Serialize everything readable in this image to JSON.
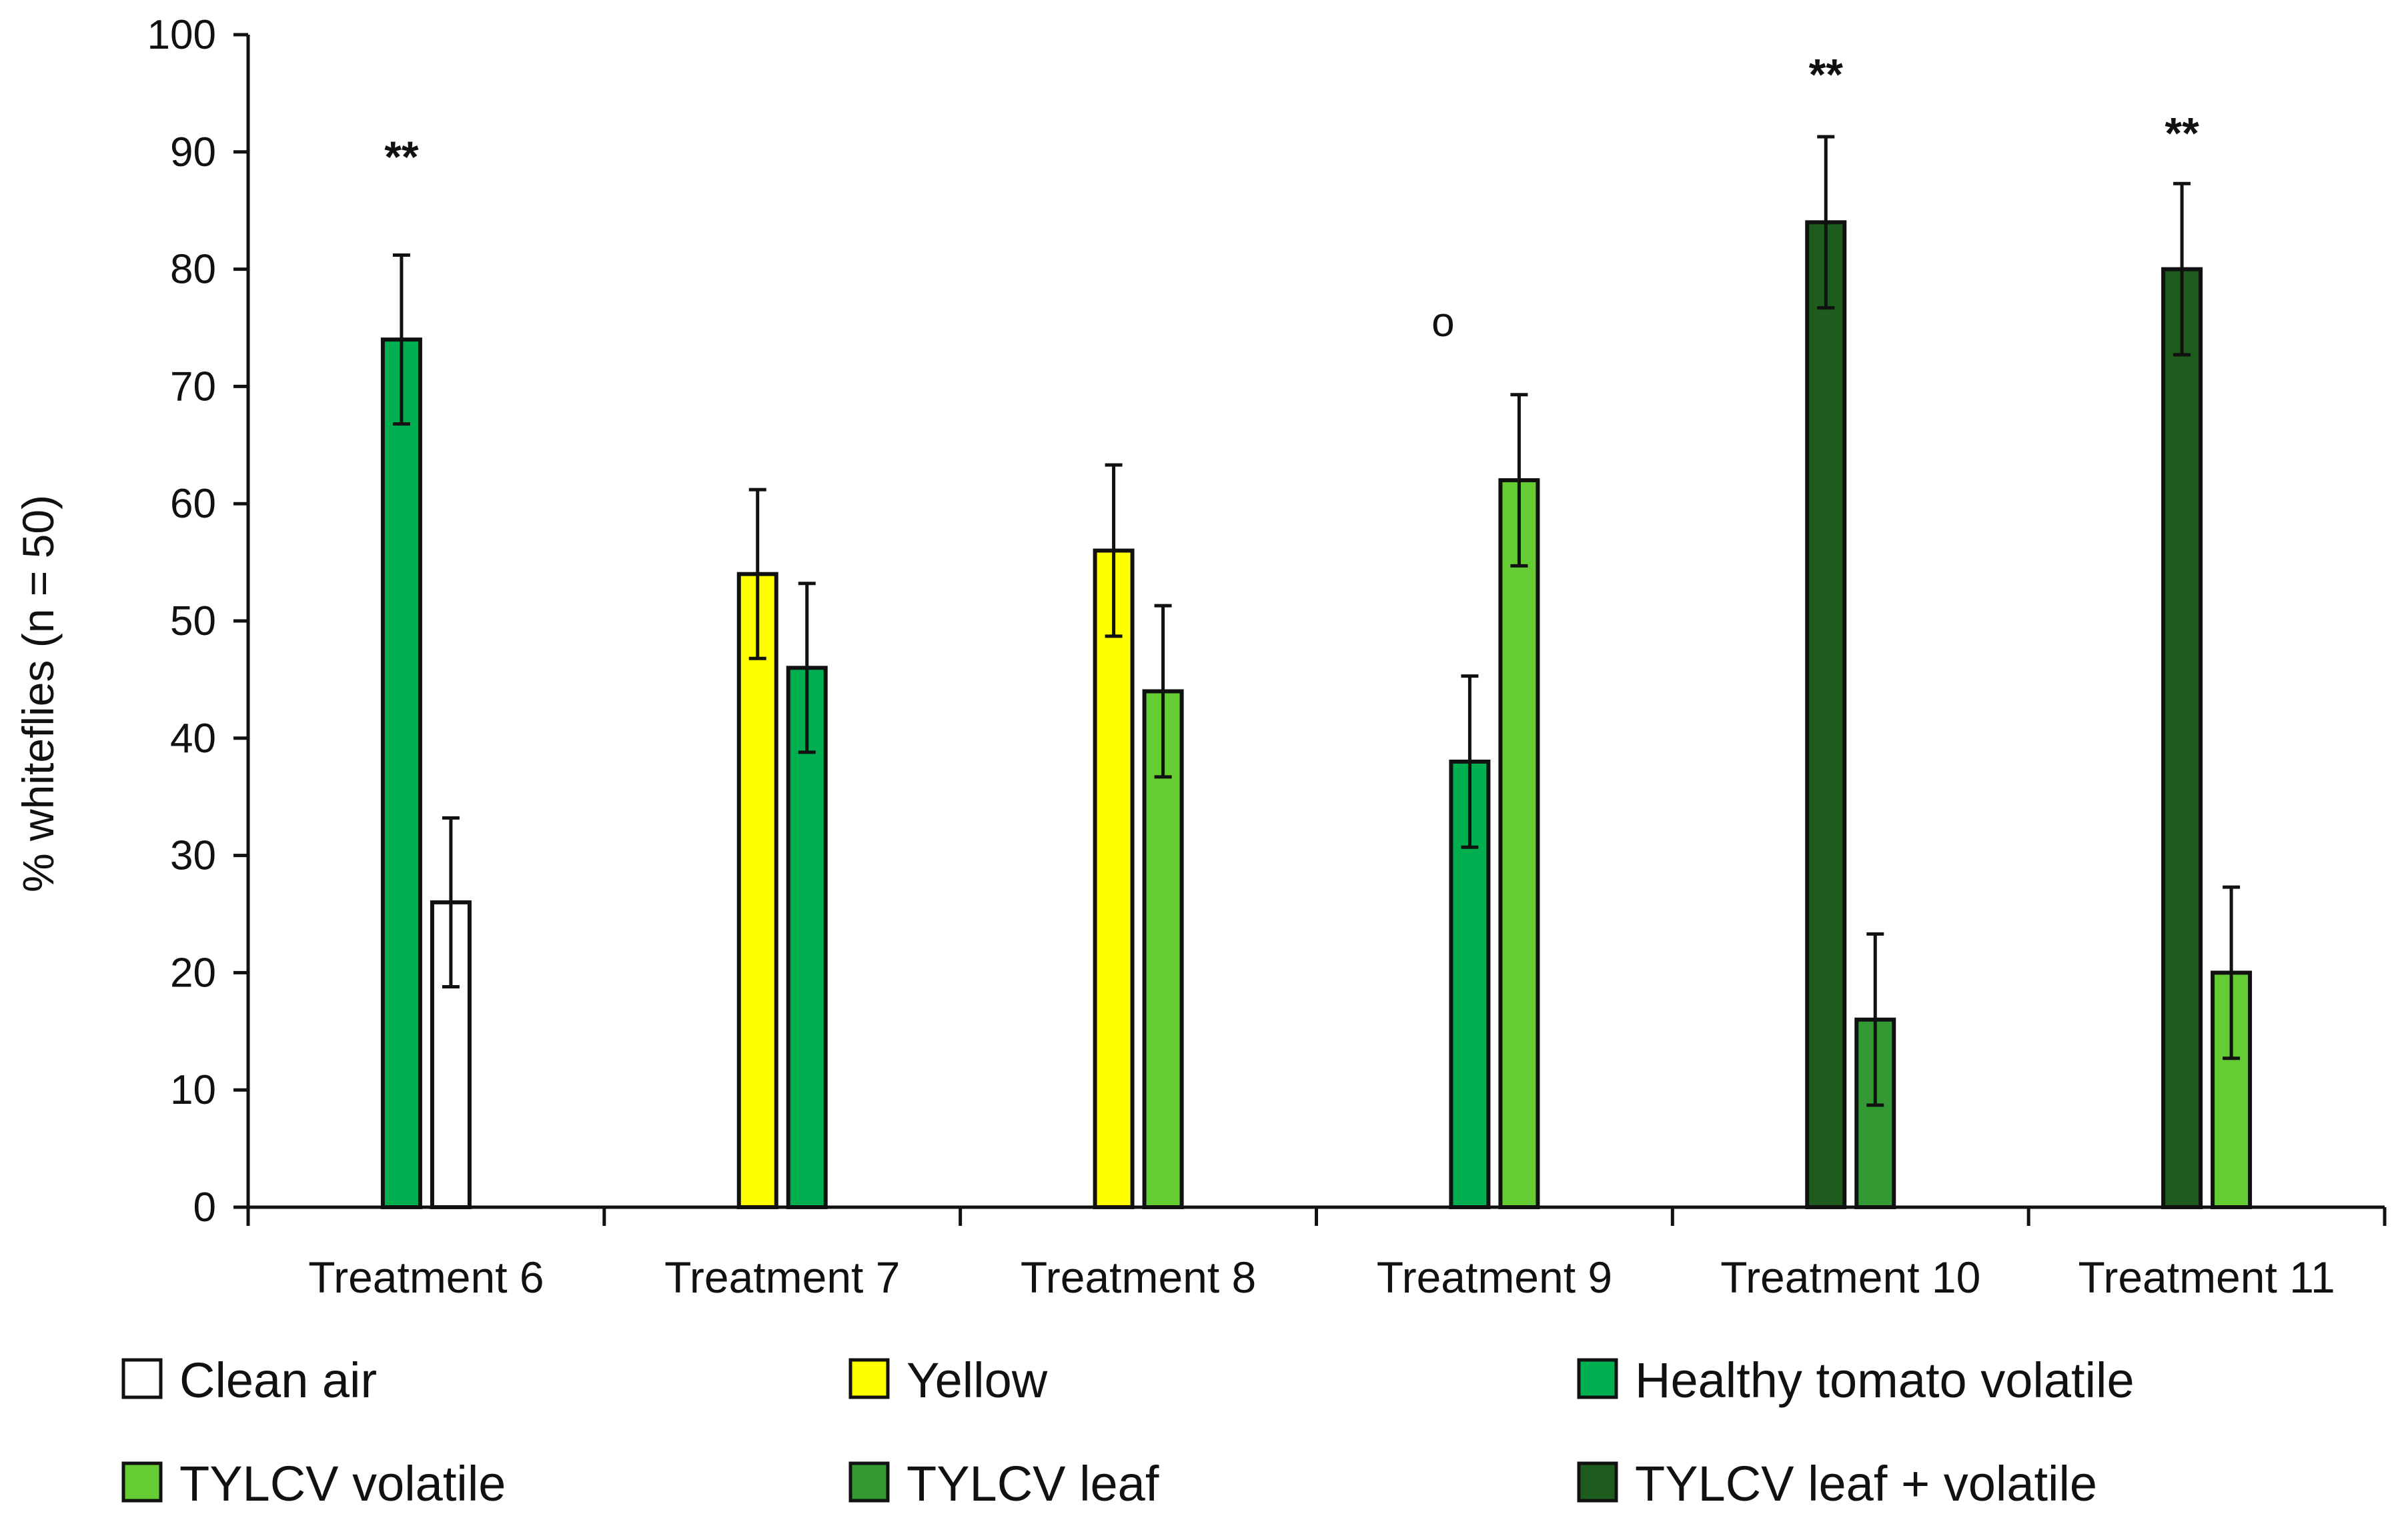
{
  "chart_data": {
    "type": "bar",
    "title": "",
    "xlabel": "",
    "ylabel": "% whiteflies (n = 50)",
    "ylim": [
      0,
      100
    ],
    "yticks": [
      0,
      10,
      20,
      30,
      40,
      50,
      60,
      70,
      80,
      90,
      100
    ],
    "grid": false,
    "categories": [
      "Treatment 6",
      "Treatment 7",
      "Treatment 8",
      "Treatment 9",
      "Treatment 10",
      "Treatment 11"
    ],
    "bars": [
      [
        {
          "series": "Healthy tomato volatile",
          "value": 74,
          "error": 7.2
        },
        {
          "series": "Clean air",
          "value": 26,
          "error": 7.2
        }
      ],
      [
        {
          "series": "Yellow",
          "value": 54,
          "error": 7.2
        },
        {
          "series": "Healthy tomato volatile",
          "value": 46,
          "error": 7.2
        }
      ],
      [
        {
          "series": "Yellow",
          "value": 56,
          "error": 7.3
        },
        {
          "series": "TYLCV volatile",
          "value": 44,
          "error": 7.3
        }
      ],
      [
        {
          "series": "Healthy tomato volatile",
          "value": 38,
          "error": 7.3
        },
        {
          "series": "TYLCV volatile",
          "value": 62,
          "error": 7.3
        }
      ],
      [
        {
          "series": "TYLCV leaf + volatile",
          "value": 84,
          "error": 7.3
        },
        {
          "series": "TYLCV leaf",
          "value": 16,
          "error": 7.3
        }
      ],
      [
        {
          "series": "TYLCV leaf + volatile",
          "value": 80,
          "error": 7.3
        },
        {
          "series": "TYLCV volatile",
          "value": 20,
          "error": 7.3
        }
      ]
    ],
    "annotations": [
      {
        "category": "Treatment 6",
        "text": "**",
        "value": 90
      },
      {
        "category": "Treatment 9",
        "text": "o",
        "value": 76
      },
      {
        "category": "Treatment 10",
        "text": "**",
        "value": 97
      },
      {
        "category": "Treatment 11",
        "text": "**",
        "value": 92
      }
    ],
    "legend": {
      "placement": "bottom",
      "items": [
        {
          "name": "Clean air",
          "color": "#ffffff"
        },
        {
          "name": "Yellow",
          "color": "#ffff00"
        },
        {
          "name": "Healthy tomato volatile",
          "color": "#00b050"
        },
        {
          "name": "TYLCV volatile",
          "color": "#66cc33"
        },
        {
          "name": "TYLCV leaf",
          "color": "#339933"
        },
        {
          "name": "TYLCV leaf + volatile",
          "color": "#1e5c1e"
        }
      ]
    }
  }
}
